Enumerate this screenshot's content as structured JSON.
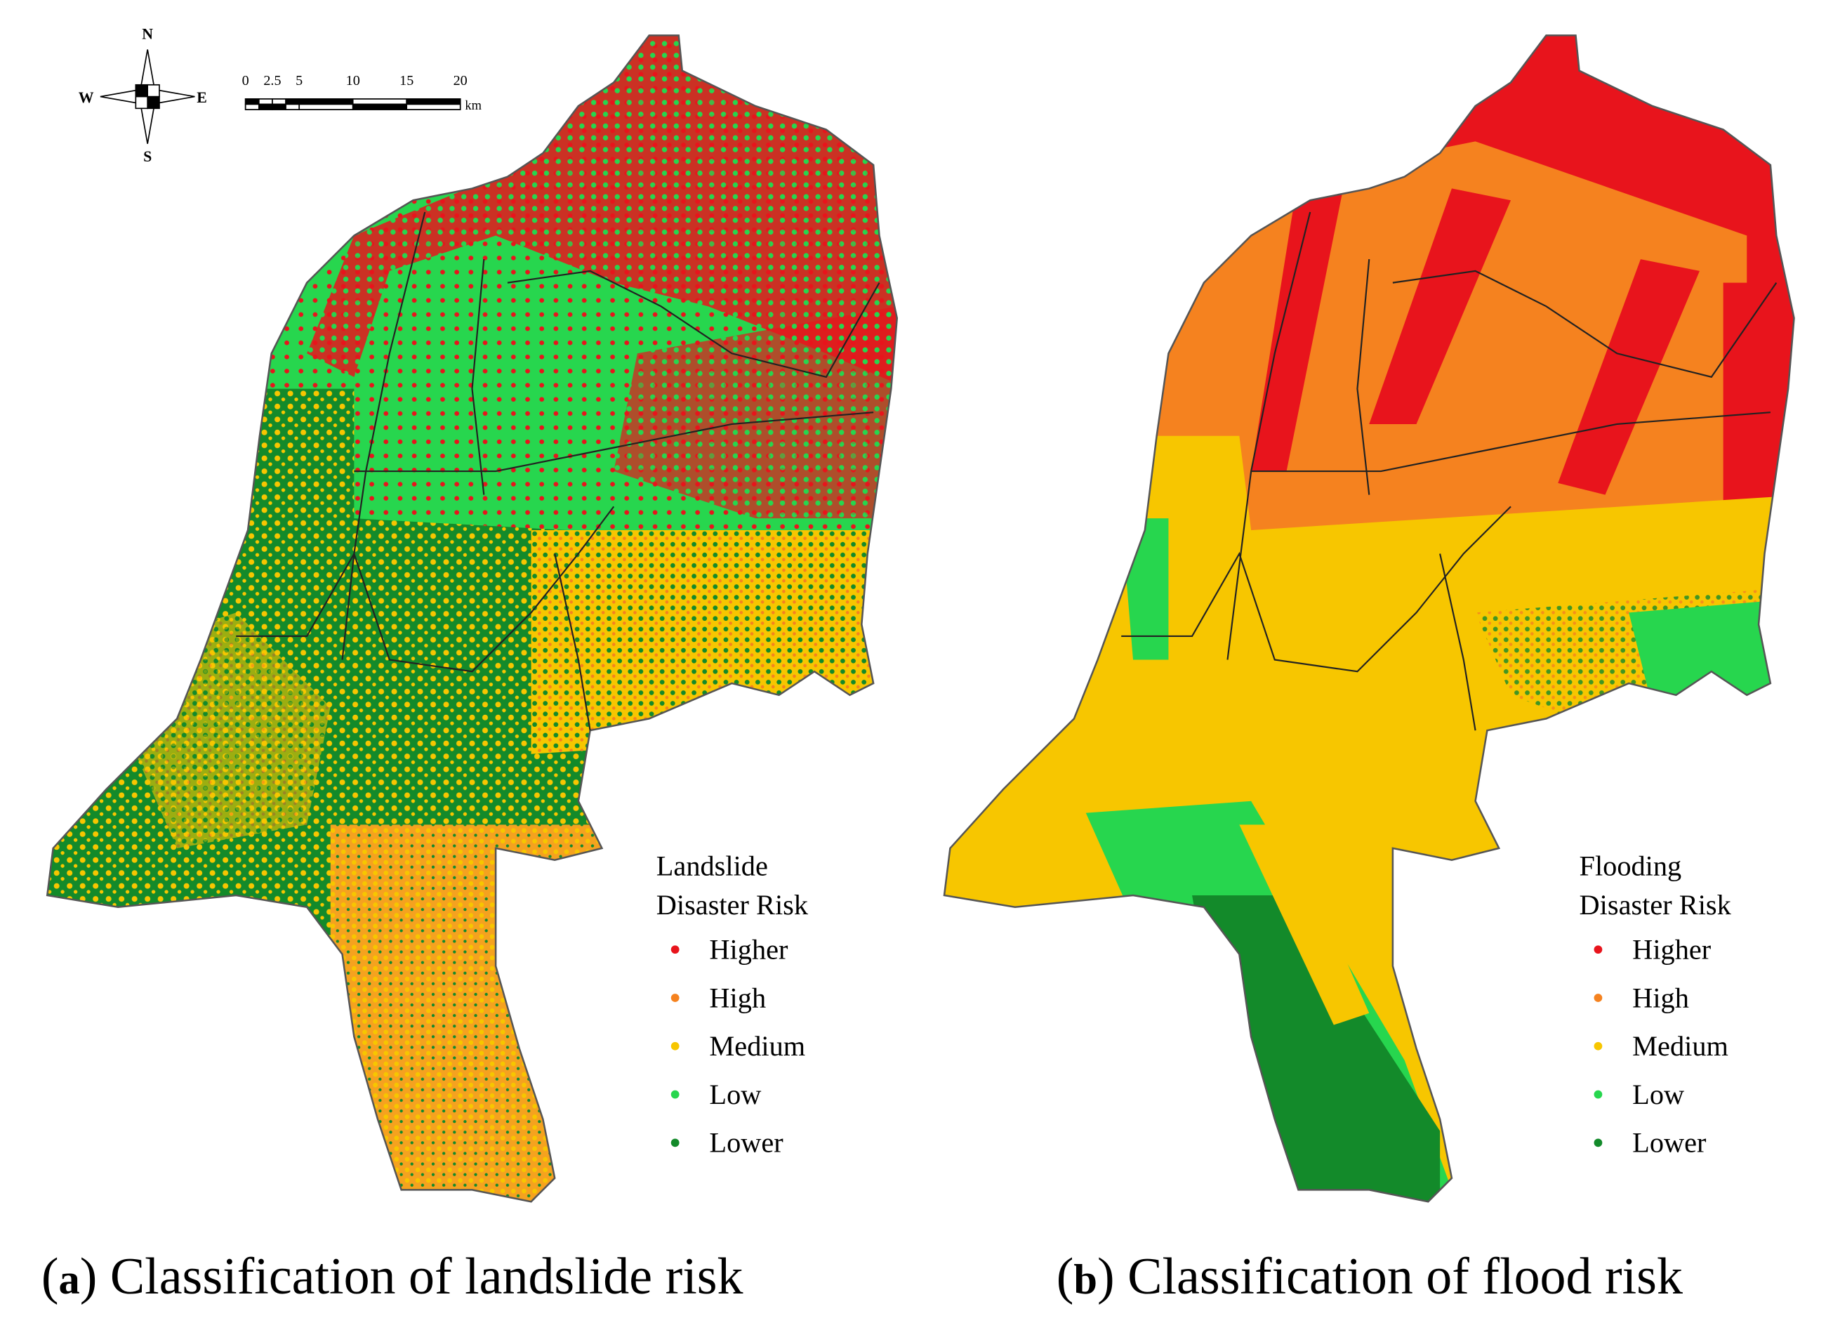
{
  "compass": {
    "n": "N",
    "s": "S",
    "e": "E",
    "w": "W"
  },
  "scale_bar": {
    "ticks": [
      0,
      2.5,
      5,
      10,
      15,
      20
    ],
    "unit": "km"
  },
  "panels": [
    {
      "caption": {
        "parts": [
          "(",
          "a",
          ") Classification of landslide risk"
        ]
      },
      "legend": {
        "title_lines": [
          "Landslide",
          "Disaster Risk"
        ],
        "classes": [
          {
            "name": "Higher",
            "color": "#e8141c"
          },
          {
            "name": "High",
            "color": "#f5821f"
          },
          {
            "name": "Medium",
            "color": "#f7c600"
          },
          {
            "name": "Low",
            "color": "#27d64e"
          },
          {
            "name": "Lower",
            "color": "#138a2a"
          }
        ]
      }
    },
    {
      "caption": {
        "parts": [
          "(",
          "b",
          ") Classification of flood risk"
        ]
      },
      "legend": {
        "title_lines": [
          "Flooding",
          "Disaster Risk"
        ],
        "classes": [
          {
            "name": "Higher",
            "color": "#e8141c"
          },
          {
            "name": "High",
            "color": "#f5821f"
          },
          {
            "name": "Medium",
            "color": "#f7c600"
          },
          {
            "name": "Low",
            "color": "#27d64e"
          },
          {
            "name": "Lower",
            "color": "#138a2a"
          }
        ]
      }
    }
  ]
}
